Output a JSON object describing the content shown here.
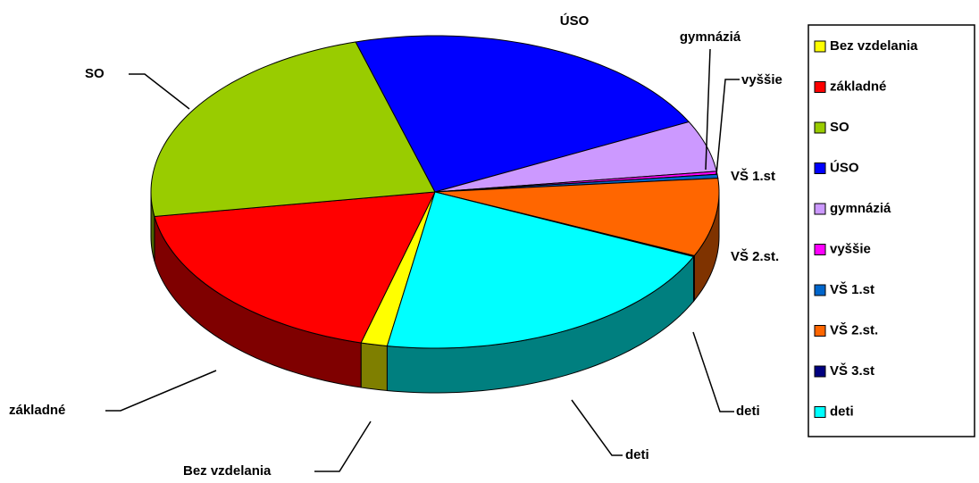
{
  "chart_data": {
    "type": "pie3d",
    "categories": [
      "Bez vzdelania",
      "základné",
      "SO",
      "ÚSO",
      "gymnáziá",
      "vyššie",
      "VŠ 1.st",
      "VŠ 2.st.",
      "VŠ 3.st",
      "deti"
    ],
    "values": [
      1.5,
      18.3,
      23,
      22.1,
      5.3,
      0.3,
      0.4,
      8.1,
      0.1,
      20.9
    ],
    "colors": [
      "#ffff00",
      "#ff0000",
      "#99cc00",
      "#0000ff",
      "#cc99ff",
      "#ff00ff",
      "#0066cc",
      "#ff6600",
      "#000080",
      "#00ffff"
    ],
    "legend": "right"
  }
}
